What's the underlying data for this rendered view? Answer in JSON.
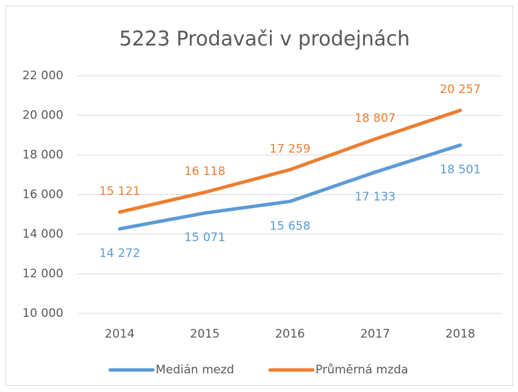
{
  "chart_data": {
    "type": "line",
    "title": "5223 Prodavači v prodejnách",
    "categories": [
      "2014",
      "2015",
      "2016",
      "2017",
      "2018"
    ],
    "series": [
      {
        "name": "Medián mezd",
        "color": "#5b9bd5",
        "values": [
          14272,
          15071,
          15658,
          17133,
          18501
        ],
        "value_labels": [
          "14 272",
          "15 071",
          "15 658",
          "17 133",
          "18 501"
        ]
      },
      {
        "name": "Průměrná mzda",
        "color": "#ed7d31",
        "values": [
          15121,
          16118,
          17259,
          18807,
          20257
        ],
        "value_labels": [
          "15 121",
          "16 118",
          "17 259",
          "18 807",
          "20 257"
        ]
      }
    ],
    "ylim": [
      10000,
      22000
    ],
    "yticks": [
      {
        "value": 10000,
        "label": "10 000"
      },
      {
        "value": 12000,
        "label": "12 000"
      },
      {
        "value": 14000,
        "label": "14 000"
      },
      {
        "value": 16000,
        "label": "16 000"
      },
      {
        "value": 18000,
        "label": "18 000"
      },
      {
        "value": 20000,
        "label": "20 000"
      },
      {
        "value": 22000,
        "label": "22 000"
      }
    ],
    "grid": true,
    "legend": "bottom"
  }
}
